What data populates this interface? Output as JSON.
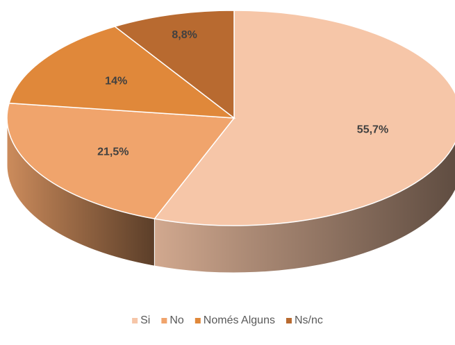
{
  "chart_data": {
    "type": "pie",
    "categories": [
      "Si",
      "No",
      "Només Alguns",
      "Ns/nc"
    ],
    "values": [
      55.7,
      21.5,
      14,
      8.8
    ],
    "value_labels": [
      "55,7%",
      "21,5%",
      "14%",
      "8,8%"
    ],
    "colors": [
      "#f6c6a8",
      "#f0a46c",
      "#e0883a",
      "#b86a30"
    ],
    "legend": "bottom"
  }
}
